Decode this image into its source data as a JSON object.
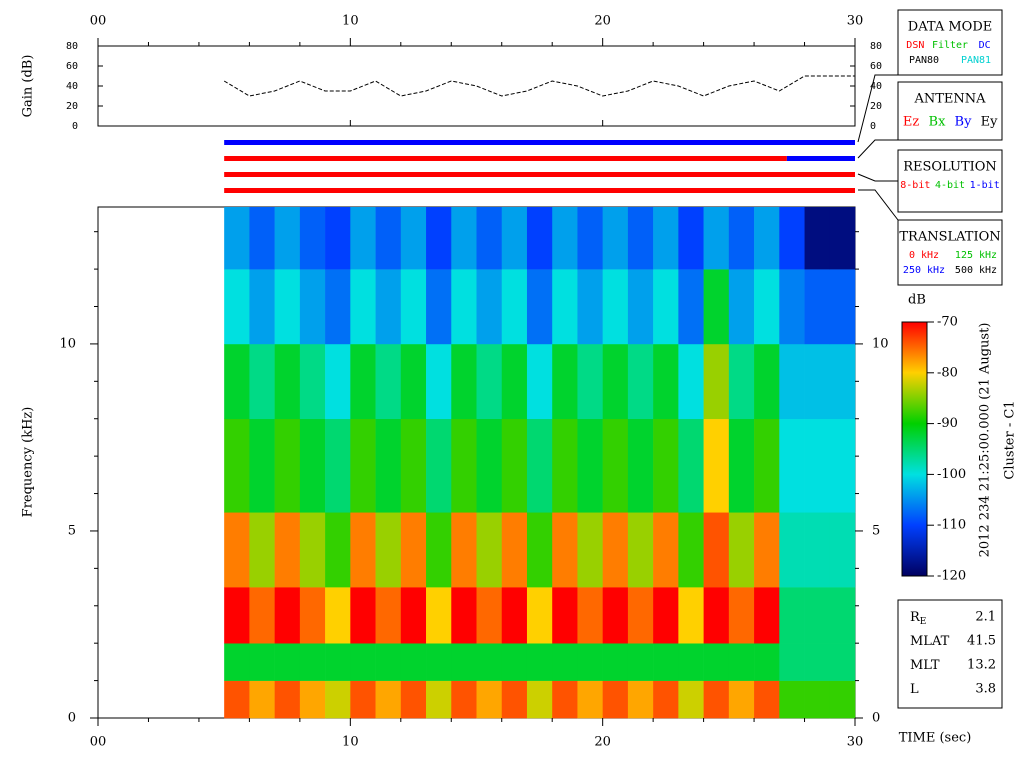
{
  "chart_data": [
    {
      "type": "line",
      "ylabel": "Gain (dB)",
      "color": "#000000",
      "x": [
        5,
        6,
        7,
        8,
        9,
        10,
        11,
        12,
        13,
        14,
        15,
        16,
        17,
        18,
        19,
        20,
        21,
        22,
        23,
        24,
        25,
        26,
        27,
        28,
        29,
        30
      ],
      "values": [
        45,
        30,
        35,
        45,
        35,
        35,
        45,
        30,
        35,
        45,
        40,
        30,
        35,
        45,
        40,
        30,
        35,
        45,
        40,
        30,
        40,
        45,
        35,
        50,
        50,
        50
      ],
      "xlim": [
        0,
        30
      ],
      "xticks": [
        {
          "value": 0,
          "label": "00"
        },
        10,
        20,
        30
      ],
      "xminorticks": [
        2,
        4,
        6,
        8,
        12,
        14,
        16,
        18,
        22,
        24,
        26,
        28
      ],
      "ylim": [
        0,
        80
      ],
      "yticks": [
        0,
        20,
        40,
        60,
        80
      ]
    },
    {
      "type": "timeline",
      "xlim": [
        0,
        30
      ],
      "rows": [
        {
          "segments": [
            {
              "start": 5,
              "end": 30,
              "color": "#0000ff"
            }
          ]
        },
        {
          "segments": [
            {
              "start": 5,
              "end": 27.3,
              "color": "#ff0000"
            },
            {
              "start": 27.3,
              "end": 30,
              "color": "#0000ff"
            }
          ]
        },
        {
          "segments": [
            {
              "start": 5,
              "end": 30,
              "color": "#ff0000"
            }
          ]
        },
        {
          "segments": [
            {
              "start": 5,
              "end": 30,
              "color": "#ff0000"
            }
          ]
        }
      ]
    },
    {
      "type": "heatmap",
      "ylabel": "Frequency (kHz)",
      "xlabel": "TIME (sec)",
      "colorbar_label": "dB",
      "xlim": [
        0,
        30
      ],
      "xticks": [
        {
          "value": 0,
          "label": "00"
        },
        10,
        20,
        30
      ],
      "xminorticks": [
        2,
        4,
        6,
        8,
        12,
        14,
        16,
        18,
        22,
        24,
        26,
        28
      ],
      "ylim": [
        0,
        13.66
      ],
      "yticks": [
        0,
        5,
        10
      ],
      "yminorticks": [
        1,
        2,
        3,
        4,
        6,
        7,
        8,
        9,
        11,
        12,
        13
      ],
      "x_edges": [
        5,
        6,
        7,
        8,
        9,
        10,
        11,
        12,
        13,
        14,
        15,
        16,
        17,
        18,
        19,
        20,
        21,
        22,
        23,
        24,
        25,
        26,
        27,
        28,
        29,
        30
      ],
      "y_edges": [
        0,
        1,
        2,
        3.5,
        5.5,
        8,
        10,
        12,
        13.66
      ],
      "z": [
        [
          -74,
          -78,
          -74,
          -78,
          -82,
          -74,
          -78,
          -74,
          -82,
          -74,
          -78,
          -74,
          -82,
          -74,
          -78,
          -74,
          -78,
          -74,
          -82,
          -74,
          -78,
          -74,
          -88,
          -88,
          -88
        ],
        [
          -92,
          -92,
          -92,
          -92,
          -92,
          -92,
          -92,
          -92,
          -92,
          -92,
          -92,
          -92,
          -92,
          -92,
          -92,
          -92,
          -92,
          -92,
          -92,
          -92,
          -92,
          -92,
          -95,
          -95,
          -95
        ],
        [
          -70,
          -75,
          -70,
          -75,
          -80,
          -70,
          -75,
          -70,
          -80,
          -70,
          -75,
          -70,
          -80,
          -70,
          -75,
          -70,
          -75,
          -70,
          -80,
          -70,
          -75,
          -70,
          -95,
          -95,
          -95
        ],
        [
          -76,
          -84,
          -76,
          -84,
          -88,
          -76,
          -84,
          -76,
          -88,
          -76,
          -84,
          -76,
          -88,
          -76,
          -84,
          -76,
          -84,
          -76,
          -88,
          -74,
          -84,
          -76,
          -98,
          -98,
          -98
        ],
        [
          -88,
          -92,
          -88,
          -92,
          -95,
          -88,
          -92,
          -88,
          -95,
          -88,
          -92,
          -88,
          -95,
          -88,
          -92,
          -88,
          -92,
          -88,
          -95,
          -80,
          -92,
          -88,
          -100,
          -100,
          -100
        ],
        [
          -92,
          -96,
          -92,
          -96,
          -100,
          -92,
          -96,
          -92,
          -100,
          -92,
          -96,
          -92,
          -100,
          -92,
          -96,
          -92,
          -96,
          -92,
          -100,
          -84,
          -96,
          -92,
          -102,
          -102,
          -102
        ],
        [
          -100,
          -104,
          -100,
          -104,
          -107,
          -100,
          -104,
          -100,
          -107,
          -100,
          -104,
          -100,
          -107,
          -100,
          -104,
          -100,
          -104,
          -100,
          -107,
          -92,
          -104,
          -100,
          -106,
          -108,
          -108
        ],
        [
          -104,
          -108,
          -104,
          -108,
          -110,
          -104,
          -108,
          -104,
          -110,
          -104,
          -108,
          -104,
          -110,
          -104,
          -108,
          -104,
          -108,
          -104,
          -110,
          -104,
          -108,
          -104,
          -110,
          -118,
          -118
        ]
      ],
      "clim": [
        -120,
        -70
      ],
      "cticks": [
        -70,
        -80,
        -90,
        -100,
        -110,
        -120
      ],
      "colormap": [
        {
          "value": -120,
          "color": "#000060"
        },
        {
          "value": -110,
          "color": "#0040ff"
        },
        {
          "value": -100,
          "color": "#00e0e0"
        },
        {
          "value": -90,
          "color": "#00d000"
        },
        {
          "value": -80,
          "color": "#ffd000"
        },
        {
          "value": -70,
          "color": "#ff0000"
        }
      ]
    }
  ],
  "panels": [
    {
      "title": "DATA MODE",
      "items": [
        {
          "text": "DSN",
          "color": "#ff0000"
        },
        {
          "text": "Filter",
          "color": "#00c000"
        },
        {
          "text": "DC",
          "color": "#0000ff"
        },
        {
          "text": "PAN80",
          "color": "#000000"
        },
        {
          "text": "PAN81",
          "color": "#00d0d0"
        }
      ]
    },
    {
      "title": "ANTENNA",
      "items": [
        {
          "text": "Ez",
          "color": "#ff0000"
        },
        {
          "text": "Bx",
          "color": "#00c000"
        },
        {
          "text": "By",
          "color": "#0000ff"
        },
        {
          "text": "Ey",
          "color": "#000000"
        }
      ]
    },
    {
      "title": "RESOLUTION",
      "items": [
        {
          "text": "8-bit",
          "color": "#ff0000"
        },
        {
          "text": "4-bit",
          "color": "#00c000"
        },
        {
          "text": "1-bit",
          "color": "#0000ff"
        }
      ]
    },
    {
      "title": "TRANSLATION",
      "items": [
        {
          "text": "0 kHz",
          "color": "#ff0000"
        },
        {
          "text": "125 kHz",
          "color": "#00c000"
        },
        {
          "text": "250 kHz",
          "color": "#0000ff"
        },
        {
          "text": "500 kHz",
          "color": "#000000"
        }
      ]
    }
  ],
  "info": [
    {
      "label": "R",
      "sub": "E",
      "value": 2.1
    },
    {
      "label": "MLAT",
      "value": 41.5
    },
    {
      "label": "MLT",
      "value": 13.2
    },
    {
      "label": "L",
      "value": 3.8
    }
  ],
  "side_text": [
    "2012 234 21:25:00.000 (21 August)",
    "Cluster - C1"
  ]
}
